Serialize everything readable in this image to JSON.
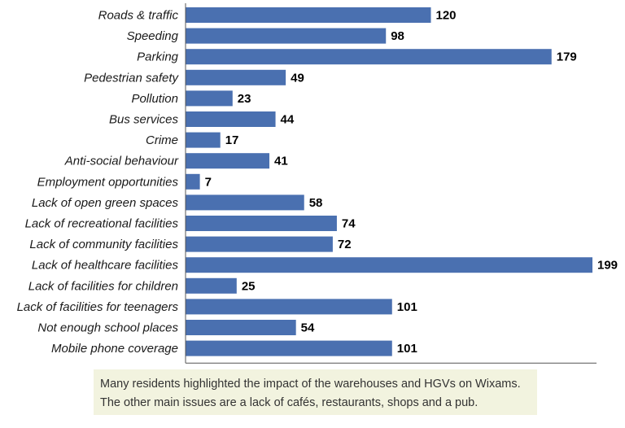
{
  "chart_data": {
    "type": "bar",
    "orientation": "horizontal",
    "title": "",
    "xlabel": "",
    "ylabel": "",
    "categories": [
      "Roads & traffic",
      "Speeding",
      "Parking",
      "Pedestrian safety",
      "Pollution",
      "Bus services",
      "Crime",
      "Anti-social behaviour",
      "Employment opportunities",
      "Lack of open green spaces",
      "Lack of recreational facilities",
      "Lack of community facilities",
      "Lack of healthcare facilities",
      "Lack of facilities for children",
      "Lack of facilities for teenagers",
      "Not enough school places",
      "Mobile phone coverage"
    ],
    "values": [
      120,
      98,
      179,
      49,
      23,
      44,
      17,
      41,
      7,
      58,
      74,
      72,
      199,
      25,
      101,
      54,
      101
    ],
    "xlim": [
      0,
      199
    ],
    "grid": false,
    "bar_color": "#4a70b0"
  },
  "note": {
    "line1": "Many residents highlighted the impact of the warehouses and HGVs on Wixams.",
    "line2": "The other main issues are a lack of cafés, restaurants, shops and a pub."
  }
}
